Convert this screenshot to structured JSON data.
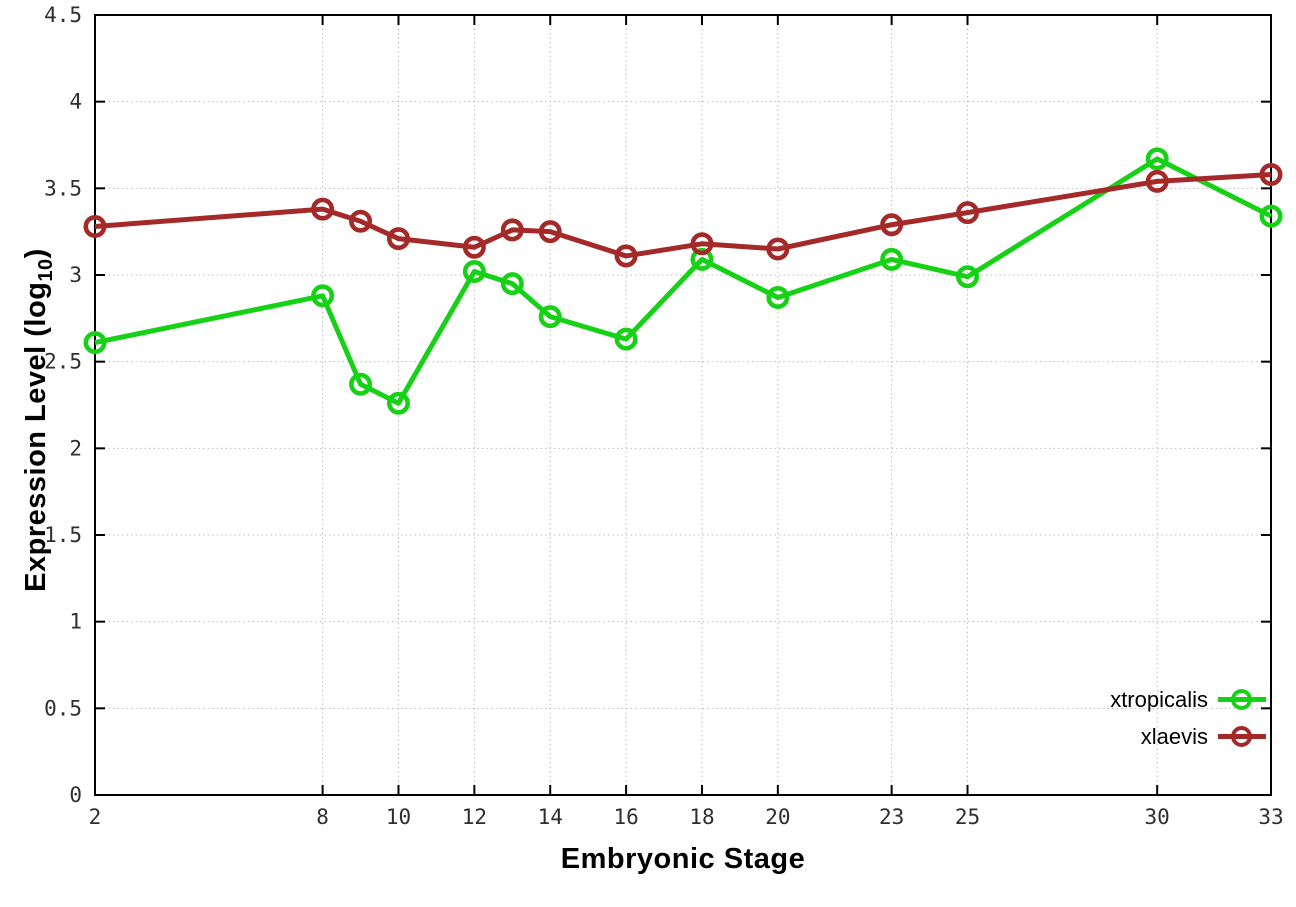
{
  "chart_data": {
    "type": "line",
    "title": "",
    "xlabel": "Embryonic Stage",
    "ylabel": {
      "main": "Expression Level (log",
      "sub": "10",
      "suffix": ")"
    },
    "x": [
      2,
      8,
      9,
      10,
      12,
      13,
      14,
      16,
      18,
      20,
      23,
      25,
      30,
      33
    ],
    "series": [
      {
        "name": "xtropicalis",
        "color": "#17d117",
        "values": [
          2.61,
          2.88,
          2.37,
          2.26,
          3.02,
          2.95,
          2.76,
          2.63,
          3.09,
          2.87,
          3.09,
          2.99,
          3.67,
          3.34
        ]
      },
      {
        "name": "xlaevis",
        "color": "#a42a2a",
        "values": [
          3.28,
          3.38,
          3.31,
          3.21,
          3.16,
          3.26,
          3.25,
          3.11,
          3.18,
          3.15,
          3.29,
          3.36,
          3.54,
          3.58
        ]
      }
    ],
    "xlim": [
      2,
      33
    ],
    "ylim": [
      0,
      4.5
    ],
    "xticks": [
      2,
      8,
      10,
      12,
      14,
      16,
      18,
      20,
      23,
      25,
      30,
      33
    ],
    "xtick_labels": [
      "2",
      "8",
      "10",
      "12",
      "14",
      "16",
      "18",
      "20",
      "23",
      "25",
      "30",
      "33"
    ],
    "yticks": [
      0,
      0.5,
      1,
      1.5,
      2,
      2.5,
      3,
      3.5,
      4,
      4.5
    ],
    "ytick_labels": [
      "0",
      "0.5",
      "1",
      "1.5",
      "2",
      "2.5",
      "3",
      "3.5",
      "4",
      "4.5"
    ],
    "grid": true,
    "legend_position": "bottom-right",
    "line_width": 5,
    "marker": "open-circle",
    "marker_radius": 9.2,
    "marker_stroke": 4.6,
    "colors": {
      "border": "#000000",
      "grid": "#bcbcbc",
      "tick_label": "#2e2e2e",
      "background": "#ffffff"
    }
  }
}
